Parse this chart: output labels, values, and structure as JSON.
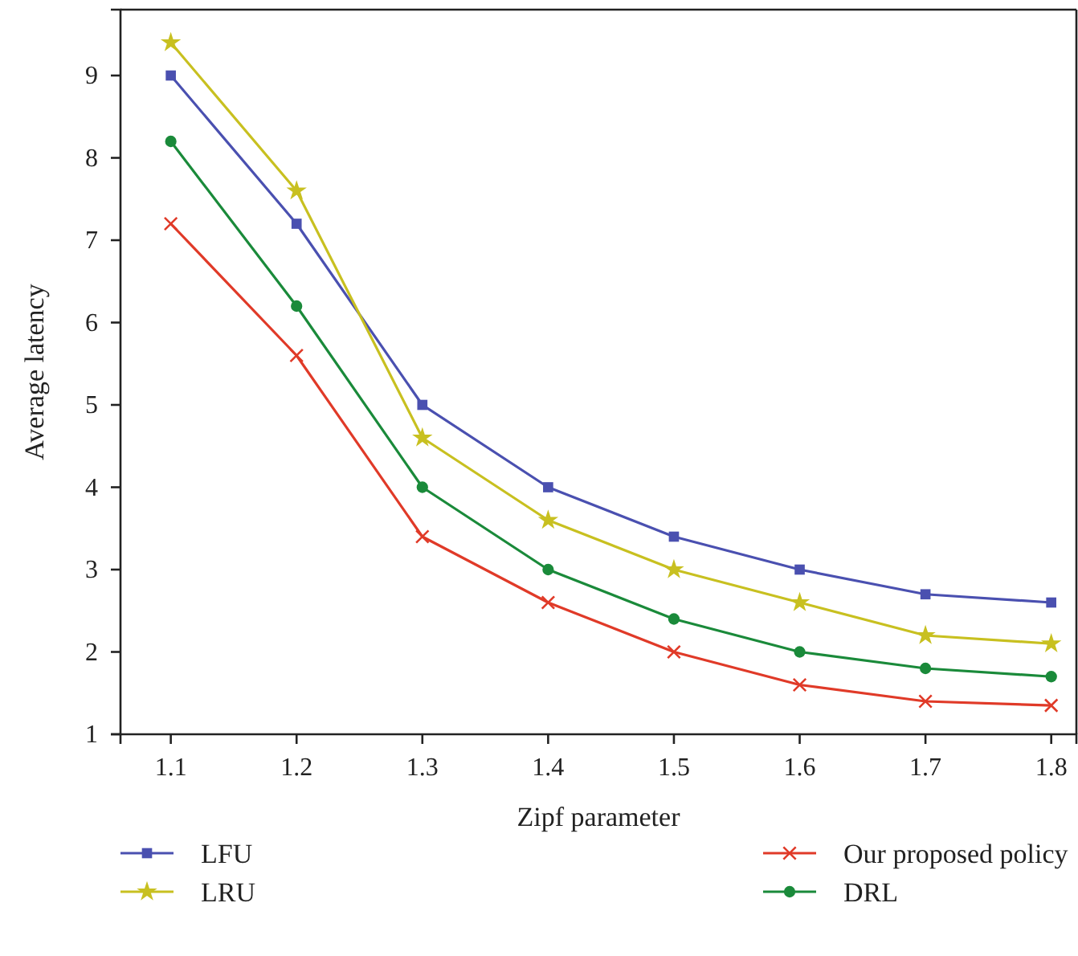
{
  "chart_data": {
    "type": "line",
    "xlabel": "Zipf parameter",
    "ylabel": "Average latency",
    "x": [
      1.1,
      1.2,
      1.3,
      1.4,
      1.5,
      1.6,
      1.7,
      1.8
    ],
    "xlim": [
      1.06,
      1.82
    ],
    "xticks": [
      1.1,
      1.2,
      1.3,
      1.4,
      1.5,
      1.6,
      1.7,
      1.8
    ],
    "ylim": [
      1,
      9.8
    ],
    "yticks": [
      1,
      2,
      3,
      4,
      5,
      6,
      7,
      8,
      9
    ],
    "grid": false,
    "legend": "bottom",
    "line_style": "solid",
    "series": [
      {
        "name": "LFU",
        "color": "#4a50b0",
        "marker": "square",
        "values": [
          9.0,
          7.2,
          5.0,
          4.0,
          3.4,
          3.0,
          2.7,
          2.6
        ]
      },
      {
        "name": "LRU",
        "color": "#c8c020",
        "marker": "star",
        "values": [
          9.4,
          7.6,
          4.6,
          3.6,
          3.0,
          2.6,
          2.2,
          2.1
        ]
      },
      {
        "name": "Our proposed policy",
        "color": "#e03a28",
        "marker": "cross",
        "values": [
          7.2,
          5.6,
          3.4,
          2.6,
          2.0,
          1.6,
          1.4,
          1.35
        ]
      },
      {
        "name": "DRL",
        "color": "#1a8a3a",
        "marker": "circle",
        "values": [
          8.2,
          6.2,
          4.0,
          3.0,
          2.4,
          2.0,
          1.8,
          1.7
        ]
      }
    ]
  }
}
